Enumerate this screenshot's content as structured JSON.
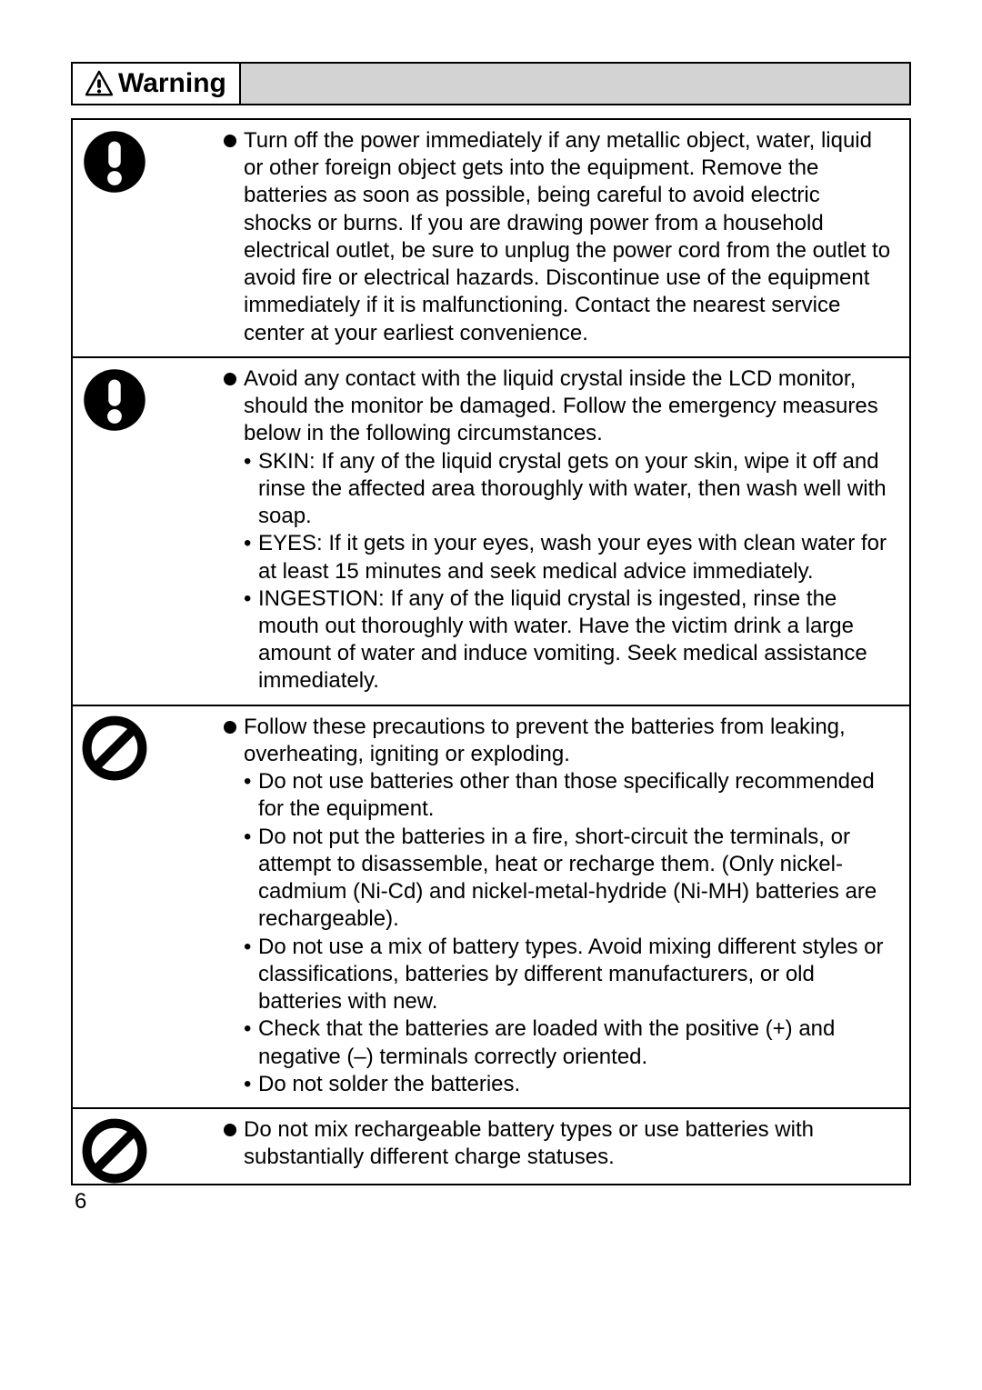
{
  "header": {
    "label": "Warning"
  },
  "page_number": "6",
  "rows": [
    {
      "icon": "mandatory",
      "lead": "Turn off the power immediately if any metallic object, water, liquid or other foreign object gets into the equipment.  Remove the batteries as soon as possible, being careful to avoid electric shocks or burns.  If you are drawing power from a household electrical outlet, be sure to unplug the power cord from the outlet to avoid fire or electrical hazards.  Discontinue use of the equipment immediately if it is malfunctioning.  Contact the nearest service center at your earliest convenience.",
      "subs": []
    },
    {
      "icon": "mandatory",
      "lead": "Avoid any contact with the liquid crystal inside the LCD monitor, should the monitor be damaged.  Follow the emergency measures below in the following circumstances.",
      "subs": [
        "SKIN: If any of the liquid crystal gets on your skin, wipe it off and rinse the affected area thoroughly with water, then wash well with soap.",
        "EYES: If it gets in your eyes, wash your eyes with clean water for at least 15 minutes and seek medical advice immediately.",
        "INGESTION: If any of the liquid crystal is ingested, rinse the mouth out thoroughly with water.  Have the victim drink a large amount of water and induce vomiting.  Seek medical assistance immediately."
      ]
    },
    {
      "icon": "prohibit",
      "lead": "Follow these precautions to prevent the batteries from leaking, overheating, igniting or exploding.",
      "subs": [
        "Do not use batteries other than those specifically recommended for the equipment.",
        "Do not put the batteries in a fire, short-circuit the terminals, or attempt to disassemble, heat or recharge them.  (Only nickel-cadmium (Ni-Cd) and nickel-metal-hydride (Ni-MH) batteries are rechargeable).",
        "Do not use a mix of battery types.  Avoid mixing different styles or classifications, batteries by different manufacturers, or old batteries with new.",
        "Check that the batteries are loaded with the positive (+) and negative (–) terminals correctly oriented.",
        "Do not solder the batteries."
      ]
    },
    {
      "icon": "prohibit",
      "lead": "Do not mix rechargeable battery types or use batteries with substantially different charge statuses.",
      "subs": []
    }
  ]
}
